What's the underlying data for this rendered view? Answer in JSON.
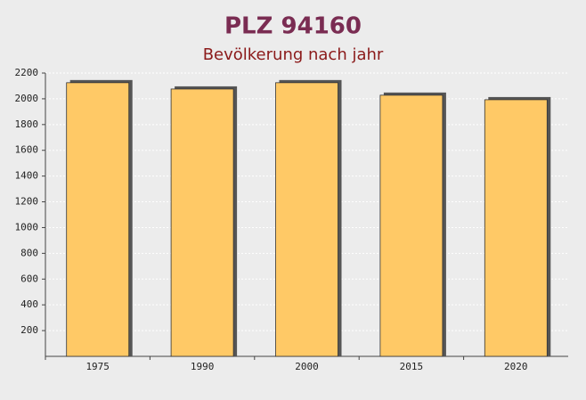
{
  "chart_data": {
    "type": "bar",
    "title": "PLZ 94160",
    "subtitle": "Bevölkerung nach jahr",
    "categories": [
      "1975",
      "1990",
      "2000",
      "2015",
      "2020"
    ],
    "values": [
      2125,
      2076,
      2125,
      2028,
      1993
    ],
    "color": "#ffc966",
    "ylim": [
      0,
      2200
    ],
    "yticks": [
      200,
      400,
      600,
      800,
      1000,
      1200,
      1400,
      1600,
      1800,
      2000,
      2200
    ],
    "grid": true
  }
}
